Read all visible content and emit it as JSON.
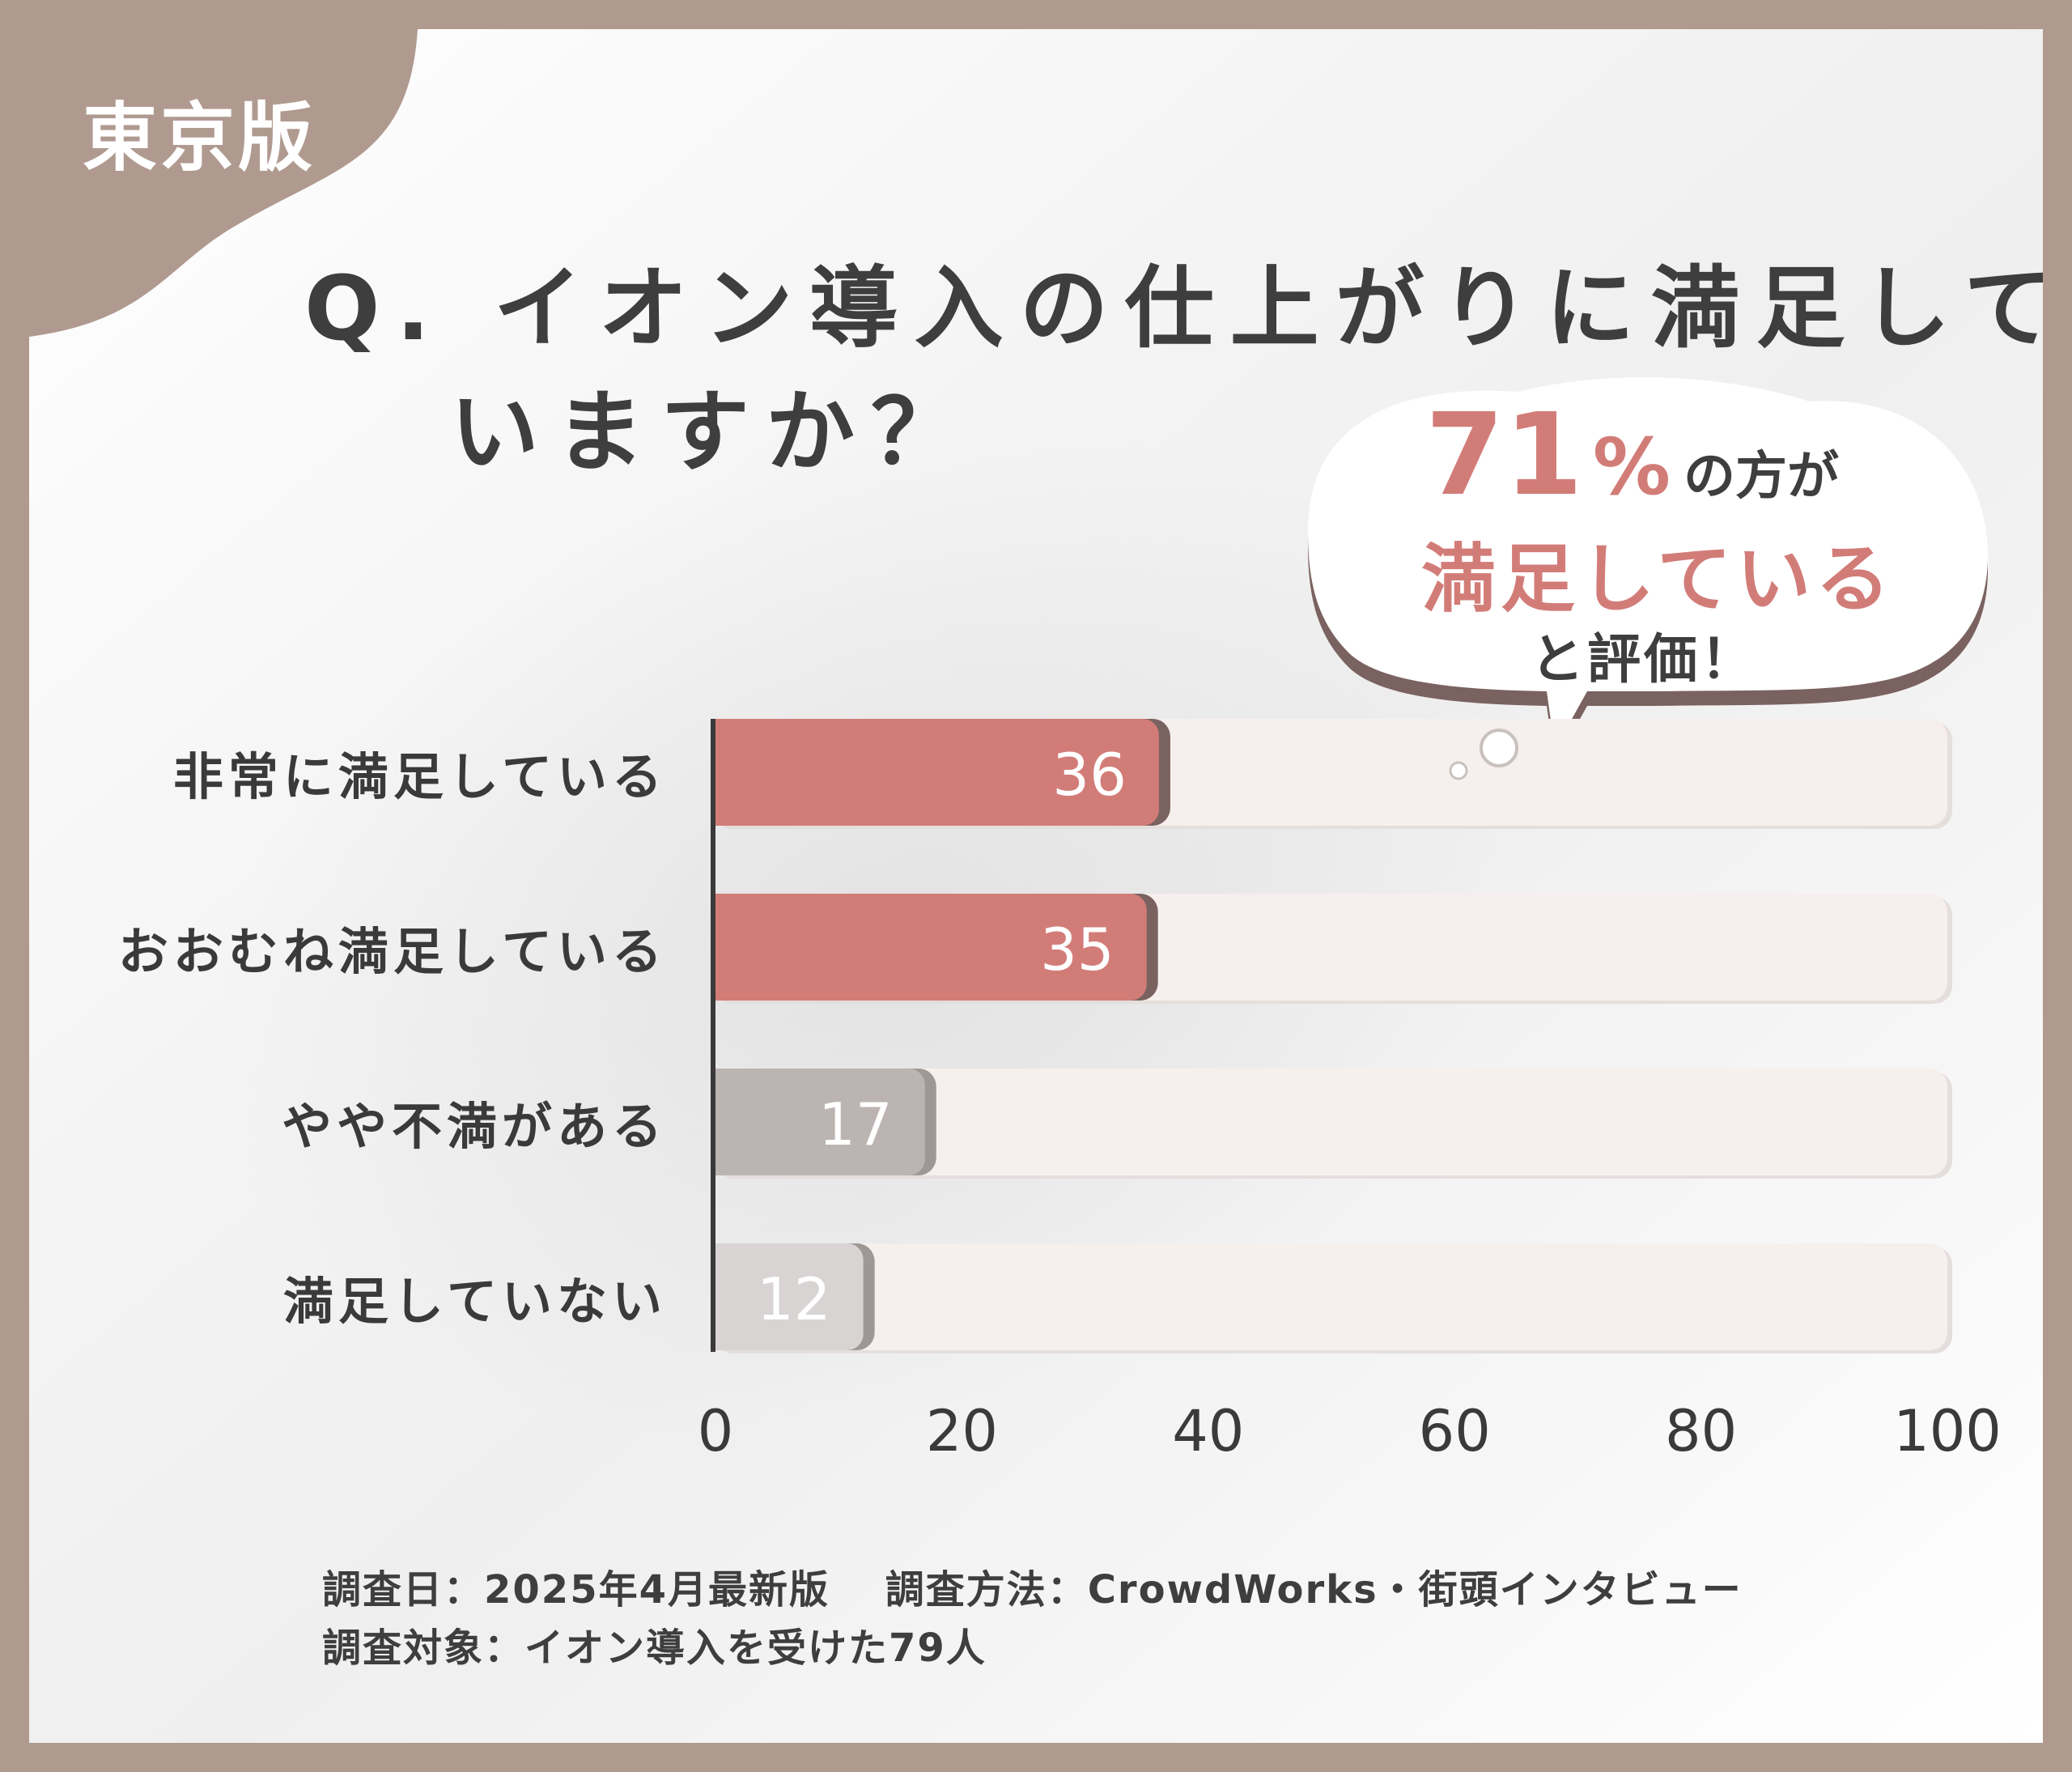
{
  "badge": "東京版",
  "question": {
    "line1": "Q. イオン導入の仕上がりに満足して",
    "line2": "いますか？"
  },
  "callout": {
    "number": "71",
    "percent": "%",
    "tail": "の方が",
    "highlight": "満足している",
    "closing": "と評価！"
  },
  "chart_data": {
    "type": "bar",
    "orientation": "horizontal",
    "categories": [
      "非常に満足している",
      "おおむね満足している",
      "やや不満がある",
      "満足していない"
    ],
    "values": [
      36,
      35,
      17,
      12
    ],
    "xlim": [
      0,
      100
    ],
    "xticks": [
      "0",
      "20",
      "40",
      "60",
      "80",
      "100"
    ],
    "grid": false,
    "colors": {
      "highlight": "#d27c78",
      "muted": "#bcb4b2",
      "light": "#d8d4d3",
      "track": "#f6efed",
      "shadow": "#7a6260"
    }
  },
  "footer": {
    "line1": "調査日：2025年4月最新版　 調査方法：CrowdWorks・街頭インタビュー",
    "line2": "調査対象：イオン導入を受けた79人"
  }
}
